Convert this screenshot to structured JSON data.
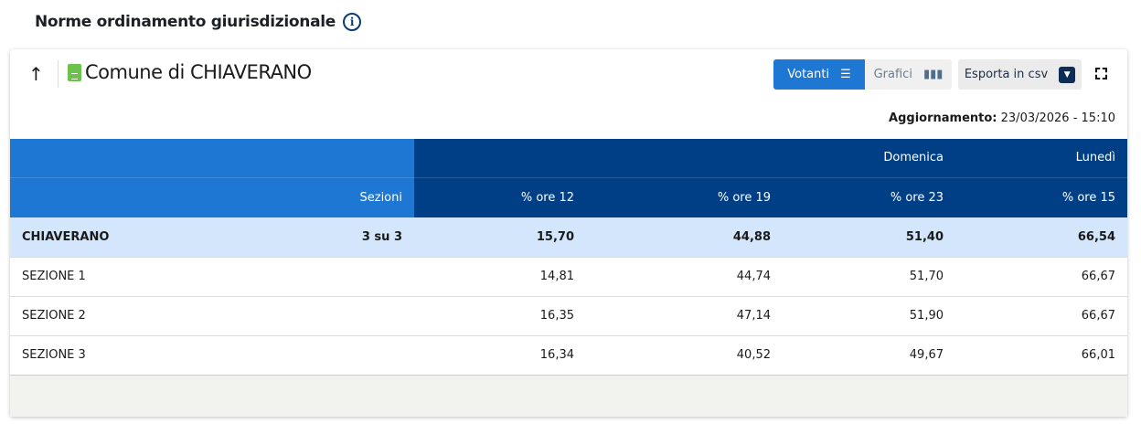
{
  "page": {
    "title": "Norme ordinamento giurisdizionale"
  },
  "card": {
    "title": "Comune di CHIAVERANO",
    "updated_label": "Aggiornamento:",
    "updated_value": "23/03/2026 - 15:10"
  },
  "toolbar": {
    "votanti": "Votanti",
    "grafici": "Grafici",
    "csv": "Esporta in csv"
  },
  "table": {
    "groups": [
      "Domenica",
      "Lunedì"
    ],
    "headers": [
      "Sezioni",
      "% ore 12",
      "% ore 19",
      "% ore 23",
      "% ore 15"
    ],
    "total": {
      "name": "CHIAVERANO",
      "sezioni": "3 su 3",
      "values": [
        "15,70",
        "44,88",
        "51,40",
        "66,54"
      ]
    },
    "rows": [
      {
        "name": "SEZIONE 1",
        "values": [
          "14,81",
          "44,74",
          "51,70",
          "66,67"
        ]
      },
      {
        "name": "SEZIONE 2",
        "values": [
          "16,35",
          "47,14",
          "51,90",
          "66,67"
        ]
      },
      {
        "name": "SEZIONE 3",
        "values": [
          "16,34",
          "40,52",
          "49,67",
          "66,01"
        ]
      }
    ]
  },
  "colors": {
    "accent": "#1f77d4",
    "header_dark": "#003f85",
    "total_row": "#d3e6fb",
    "doc_icon": "#6cc24a"
  }
}
